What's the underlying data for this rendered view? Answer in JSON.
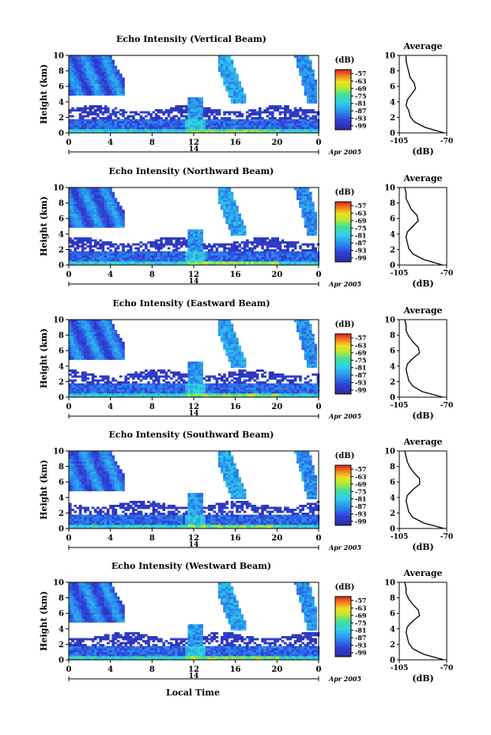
{
  "figure": {
    "date_label": "Apr 2005",
    "xlabel": "Local Time",
    "colorbar_unit": "(dB)",
    "average_title": "Average",
    "average_xlabel": "(dB)",
    "avg_xticks": [
      "-105",
      "-70"
    ],
    "height_label": "Height (km)",
    "day_label": "14"
  },
  "chart_data": [
    {
      "type": "heatmap",
      "title": "Echo Intensity (Vertical Beam)",
      "ylabel": "Height (km)",
      "xticks": [
        "0",
        "4",
        "8",
        "12",
        "16",
        "20",
        "0"
      ],
      "yticks": [
        "0",
        "2",
        "4",
        "6",
        "8",
        "10"
      ],
      "xlim": [
        0,
        24
      ],
      "ylim": [
        0,
        10
      ],
      "colorbar_ticks": [
        "-57",
        "-63",
        "-69",
        "-75",
        "-81",
        "-87",
        "-93",
        "-99"
      ],
      "avg_profile_db": [
        -72,
        -86,
        -94,
        -97,
        -98,
        -100,
        -99,
        -96,
        -93,
        -94,
        -97,
        -98,
        -99,
        -100,
        -100
      ]
    },
    {
      "type": "heatmap",
      "title": "Echo Intensity (Northward Beam)",
      "ylabel": "Height (km)",
      "xticks": [
        "0",
        "4",
        "8",
        "12",
        "16",
        "20",
        "0"
      ],
      "yticks": [
        "0",
        "2",
        "4",
        "6",
        "8",
        "10"
      ],
      "xlim": [
        0,
        24
      ],
      "ylim": [
        0,
        10
      ],
      "colorbar_ticks": [
        "-57",
        "-63",
        "-69",
        "-75",
        "-81",
        "-87",
        "-93",
        "-99"
      ],
      "avg_profile_db": [
        -73,
        -87,
        -95,
        -98,
        -99,
        -100,
        -99,
        -95,
        -91,
        -92,
        -96,
        -98,
        -100,
        -100,
        -101
      ]
    },
    {
      "type": "heatmap",
      "title": "Echo Intensity (Eastward Beam)",
      "ylabel": "Height (km)",
      "xticks": [
        "0",
        "4",
        "8",
        "12",
        "16",
        "20",
        "0"
      ],
      "yticks": [
        "0",
        "2",
        "4",
        "6",
        "8",
        "10"
      ],
      "xlim": [
        0,
        24
      ],
      "ylim": [
        0,
        10
      ],
      "colorbar_ticks": [
        "-57",
        "-63",
        "-69",
        "-75",
        "-81",
        "-87",
        "-93",
        "-99"
      ],
      "avg_profile_db": [
        -73,
        -88,
        -95,
        -98,
        -99,
        -100,
        -99,
        -95,
        -90,
        -91,
        -95,
        -98,
        -100,
        -100,
        -101
      ]
    },
    {
      "type": "heatmap",
      "title": "Echo Intensity (Southward Beam)",
      "ylabel": "Height (km)",
      "xticks": [
        "0",
        "4",
        "8",
        "12",
        "16",
        "20",
        "0"
      ],
      "yticks": [
        "0",
        "2",
        "4",
        "6",
        "8",
        "10"
      ],
      "xlim": [
        0,
        24
      ],
      "ylim": [
        0,
        10
      ],
      "colorbar_ticks": [
        "-57",
        "-63",
        "-69",
        "-75",
        "-81",
        "-87",
        "-93",
        "-99"
      ],
      "avg_profile_db": [
        -72,
        -87,
        -95,
        -98,
        -99,
        -100,
        -99,
        -95,
        -90,
        -90,
        -94,
        -97,
        -99,
        -100,
        -101
      ]
    },
    {
      "type": "heatmap",
      "title": "Echo Intensity (Westward Beam)",
      "ylabel": "Height (km)",
      "xticks": [
        "0",
        "4",
        "8",
        "12",
        "16",
        "20",
        "0"
      ],
      "yticks": [
        "0",
        "2",
        "4",
        "6",
        "8",
        "10"
      ],
      "xlim": [
        0,
        24
      ],
      "ylim": [
        0,
        10
      ],
      "colorbar_ticks": [
        "-57",
        "-63",
        "-69",
        "-75",
        "-81",
        "-87",
        "-93",
        "-99"
      ],
      "avg_profile_db": [
        -72,
        -87,
        -95,
        -98,
        -99,
        -100,
        -99,
        -95,
        -90,
        -91,
        -95,
        -98,
        -100,
        -100,
        -101
      ]
    }
  ]
}
